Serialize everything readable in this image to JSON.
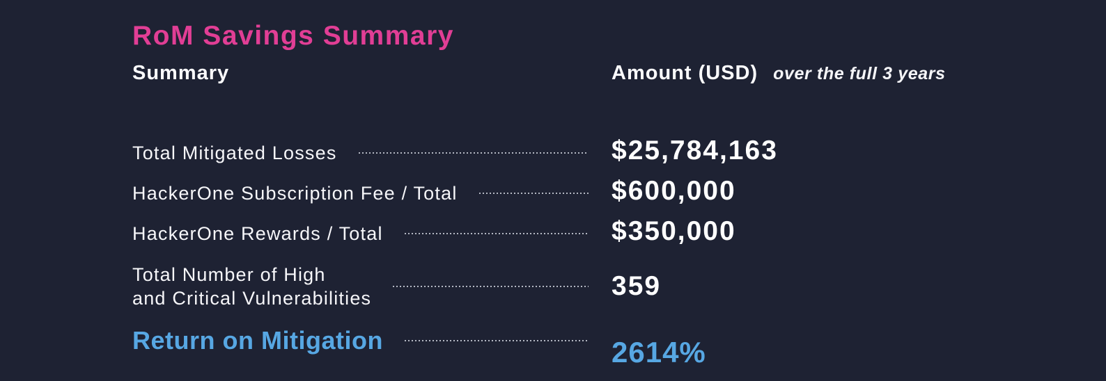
{
  "page": {
    "background_color": "#1e2233"
  },
  "title": {
    "text": "RoM Savings Summary",
    "color": "#e13e95"
  },
  "table": {
    "columns": {
      "label_header": "Summary",
      "value_header": "Amount (USD)",
      "value_note": "over the full 3 years"
    },
    "rows": [
      {
        "label": "Total Mitigated Losses",
        "value": "$25,784,163"
      },
      {
        "label": "HackerOne Subscription Fee / Total",
        "value": "$600,000"
      },
      {
        "label": "HackerOne Rewards / Total",
        "value": "$350,000"
      },
      {
        "label": "Total Number of High\nand Critical Vulnerabilities",
        "value": "359"
      },
      {
        "label": "Return on Mitigation",
        "value": "2614%",
        "highlight_color": "#57a7e3"
      }
    ]
  }
}
